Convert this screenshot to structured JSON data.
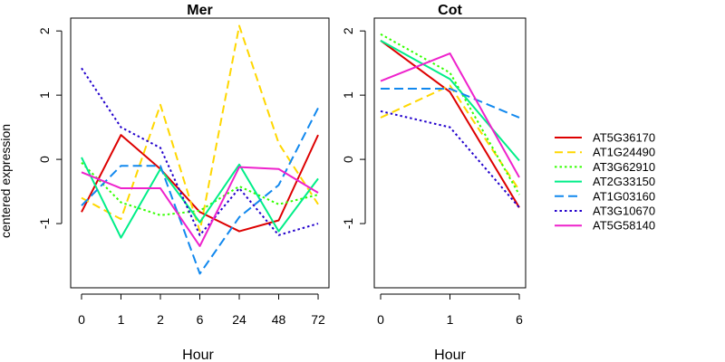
{
  "figure": {
    "ylabel": "centered expression"
  },
  "chart_data": [
    {
      "type": "line",
      "title": "Mer",
      "xlabel": "Hour",
      "ylabel": "centered expression",
      "categories": [
        "0",
        "1",
        "2",
        "6",
        "24",
        "48",
        "72"
      ],
      "ylim": [
        -2.0,
        2.2
      ],
      "yticks": [
        "-1",
        "0",
        "1",
        "2"
      ],
      "series": [
        {
          "name": "AT5G36170",
          "color": "#dd0000",
          "dash": "solid",
          "values": [
            -0.82,
            0.38,
            -0.15,
            -0.82,
            -1.12,
            -0.95,
            0.38
          ]
        },
        {
          "name": "AT1G24490",
          "color": "#ffd700",
          "dash": "dashed",
          "values": [
            -0.6,
            -0.93,
            0.85,
            -1.12,
            2.08,
            0.25,
            -0.7
          ]
        },
        {
          "name": "AT3G62910",
          "color": "#33ff00",
          "dash": "dotted",
          "values": [
            -0.05,
            -0.67,
            -0.87,
            -0.8,
            -0.42,
            -0.7,
            -0.55
          ]
        },
        {
          "name": "AT2G33150",
          "color": "#00ee88",
          "dash": "solid",
          "values": [
            0.03,
            -1.22,
            -0.15,
            -0.98,
            -0.08,
            -1.12,
            -0.3
          ]
        },
        {
          "name": "AT1G03160",
          "color": "#1188ee",
          "dash": "longdash",
          "values": [
            -0.72,
            -0.1,
            -0.1,
            -1.78,
            -0.9,
            -0.4,
            0.8
          ]
        },
        {
          "name": "AT3G10670",
          "color": "#2200cc",
          "dash": "dotted",
          "values": [
            1.42,
            0.5,
            0.18,
            -1.18,
            -0.45,
            -1.18,
            -1.0
          ]
        },
        {
          "name": "AT5G58140",
          "color": "#ee22cc",
          "dash": "solid",
          "values": [
            -0.2,
            -0.45,
            -0.45,
            -1.35,
            -0.12,
            -0.15,
            -0.52
          ]
        }
      ]
    },
    {
      "type": "line",
      "title": "Cot",
      "xlabel": "Hour",
      "categories": [
        "0",
        "1",
        "6"
      ],
      "ylim": [
        -2.0,
        2.2
      ],
      "yticks": [
        "-1",
        "0",
        "1",
        "2"
      ],
      "series": [
        {
          "name": "AT5G36170",
          "color": "#dd0000",
          "dash": "solid",
          "values": [
            1.85,
            1.05,
            -0.75
          ]
        },
        {
          "name": "AT1G24490",
          "color": "#ffd700",
          "dash": "dashed",
          "values": [
            0.65,
            1.15,
            -0.48
          ]
        },
        {
          "name": "AT3G62910",
          "color": "#33ff00",
          "dash": "dotted",
          "values": [
            1.95,
            1.35,
            -0.55
          ]
        },
        {
          "name": "AT2G33150",
          "color": "#00ee88",
          "dash": "solid",
          "values": [
            1.85,
            1.25,
            -0.02
          ]
        },
        {
          "name": "AT1G03160",
          "color": "#1188ee",
          "dash": "longdash",
          "values": [
            1.1,
            1.1,
            0.65
          ]
        },
        {
          "name": "AT3G10670",
          "color": "#2200cc",
          "dash": "dotted",
          "values": [
            0.75,
            0.5,
            -0.75
          ]
        },
        {
          "name": "AT5G58140",
          "color": "#ee22cc",
          "dash": "solid",
          "values": [
            1.22,
            1.65,
            -0.28
          ]
        }
      ]
    }
  ],
  "legend": {
    "placement": "right",
    "entries": [
      {
        "name": "AT5G36170",
        "color": "#dd0000",
        "dash": "solid"
      },
      {
        "name": "AT1G24490",
        "color": "#ffd700",
        "dash": "dashed"
      },
      {
        "name": "AT3G62910",
        "color": "#33ff00",
        "dash": "dotted"
      },
      {
        "name": "AT2G33150",
        "color": "#00ee88",
        "dash": "solid"
      },
      {
        "name": "AT1G03160",
        "color": "#1188ee",
        "dash": "longdash"
      },
      {
        "name": "AT3G10670",
        "color": "#2200cc",
        "dash": "dotted"
      },
      {
        "name": "AT5G58140",
        "color": "#ee22cc",
        "dash": "solid"
      }
    ]
  }
}
